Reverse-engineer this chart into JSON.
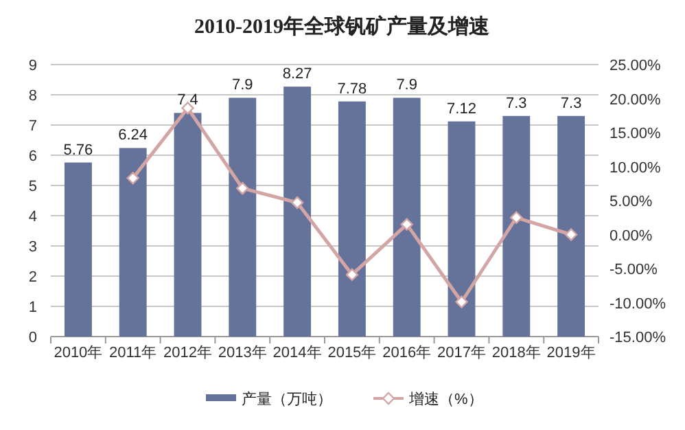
{
  "chart_data": {
    "type": "bar",
    "title": "2010-2019年全球钒矿产量及增速",
    "categories": [
      "2010年",
      "2011年",
      "2012年",
      "2013年",
      "2014年",
      "2015年",
      "2016年",
      "2017年",
      "2018年",
      "2019年"
    ],
    "series": [
      {
        "name": "产量（万吨）",
        "color": "#65739b",
        "values": [
          5.76,
          6.24,
          7.4,
          7.9,
          8.27,
          7.78,
          7.9,
          7.12,
          7.3,
          7.3
        ],
        "value_labels": [
          "5.76",
          "6.24",
          "7.4",
          "7.9",
          "8.27",
          "7.78",
          "7.9",
          "7.12",
          "7.3",
          "7.3"
        ]
      },
      {
        "name": "增速（%）",
        "type": "line",
        "axis": "y2",
        "color": "#d4a5a5",
        "marker": "diamond",
        "values": [
          null,
          8.3,
          18.6,
          6.8,
          4.7,
          -5.9,
          1.5,
          -9.9,
          2.5,
          0
        ]
      }
    ],
    "ylim": [
      0,
      9
    ],
    "yticks": [
      0,
      1,
      2,
      3,
      4,
      5,
      6,
      7,
      8,
      9
    ],
    "y2lim": [
      -15,
      25
    ],
    "y2ticks": [
      {
        "value": -15,
        "label": "-15.00%"
      },
      {
        "value": -10,
        "label": "-10.00%"
      },
      {
        "value": -5,
        "label": "-5.00%"
      },
      {
        "value": 0,
        "label": "0.00%"
      },
      {
        "value": 5,
        "label": "5.00%"
      },
      {
        "value": 10,
        "label": "10.00%"
      },
      {
        "value": 15,
        "label": "15.00%"
      },
      {
        "value": 20,
        "label": "20.00%"
      },
      {
        "value": 25,
        "label": "25.00%"
      }
    ],
    "grid": "y",
    "legend": "bottom"
  }
}
